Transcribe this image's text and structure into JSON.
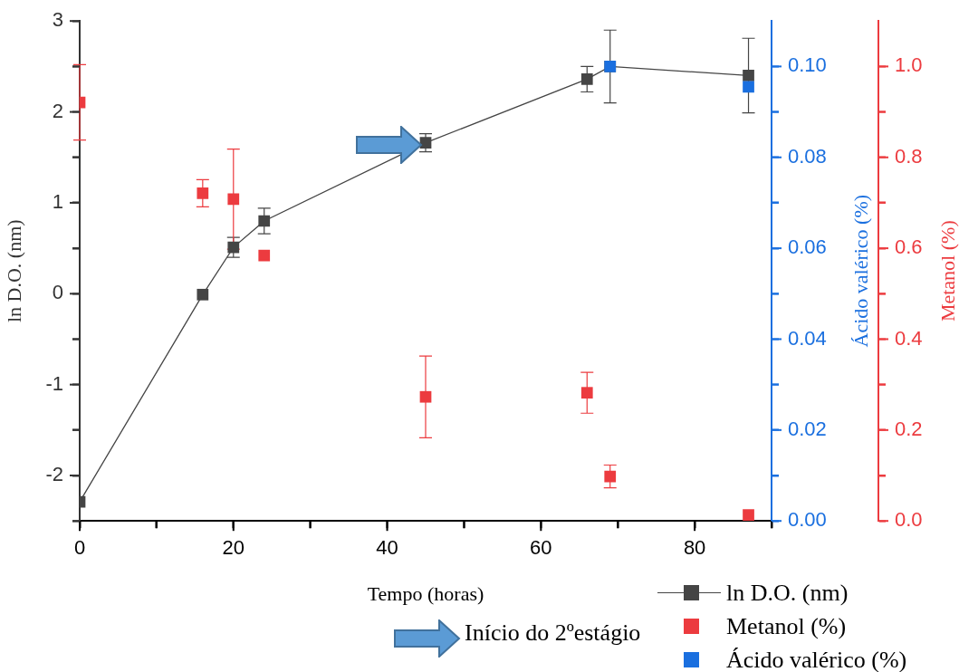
{
  "chart_data": {
    "type": "scatter",
    "xlabel": "Tempo (horas)",
    "ylabel": "ln D.O. (nm)",
    "y2label": "Ácido valérico (%)",
    "y3label": "Metanol (%)",
    "xlim": [
      0,
      90
    ],
    "xticks": [
      0,
      {
        "value": 10,
        "label": null
      },
      20,
      {
        "value": 30,
        "label": null
      },
      40,
      {
        "value": 50,
        "label": null
      },
      60,
      {
        "value": 70,
        "label": null
      },
      80,
      {
        "value": 90,
        "label": null
      }
    ],
    "ylim": [
      -2.5,
      3
    ],
    "yticks": [
      {
        "value": -2.5,
        "label": null
      },
      -2,
      {
        "value": -1.5,
        "label": null
      },
      -1,
      {
        "value": -0.5,
        "label": null
      },
      0,
      {
        "value": 0.5,
        "label": null
      },
      1,
      {
        "value": 1.5,
        "label": null
      },
      2,
      {
        "value": 2.5,
        "label": null
      },
      3
    ],
    "y2lim": [
      0,
      0.11
    ],
    "y2ticks": [
      {
        "value": 0,
        "label": "0.00"
      },
      {
        "value": 0.01,
        "label": null
      },
      {
        "value": 0.02,
        "label": "0.02"
      },
      {
        "value": 0.03,
        "label": null
      },
      {
        "value": 0.04,
        "label": "0.04"
      },
      {
        "value": 0.05,
        "label": null
      },
      {
        "value": 0.06,
        "label": "0.06"
      },
      {
        "value": 0.07,
        "label": null
      },
      {
        "value": 0.08,
        "label": "0.08"
      },
      {
        "value": 0.09,
        "label": null
      },
      {
        "value": 0.1,
        "label": "0.10"
      }
    ],
    "y3lim": [
      0,
      1.1
    ],
    "y3ticks": [
      {
        "value": 0,
        "label": "0.0"
      },
      {
        "value": 0.1,
        "label": null
      },
      {
        "value": 0.2,
        "label": "0.2"
      },
      {
        "value": 0.3,
        "label": null
      },
      {
        "value": 0.4,
        "label": "0.4"
      },
      {
        "value": 0.5,
        "label": null
      },
      {
        "value": 0.6,
        "label": "0.6"
      },
      {
        "value": 0.7,
        "label": null
      },
      {
        "value": 0.8,
        "label": "0.8"
      },
      {
        "value": 0.9,
        "label": null
      },
      {
        "value": 1,
        "label": "1.0"
      }
    ],
    "marker": "square",
    "grid": false,
    "legend": "bottom right",
    "annotations": [
      "Início do 2ºestágio"
    ],
    "series": [
      {
        "name": "ln D.O. (nm)",
        "type": "line",
        "color": "#454545",
        "x": [
          0,
          16,
          20,
          24,
          45,
          66,
          69,
          87
        ],
        "values": [
          -2.29,
          -0.01,
          0.51,
          0.8,
          1.66,
          2.36,
          2.5,
          2.4
        ],
        "errors": [
          null,
          null,
          0.11,
          0.14,
          0.1,
          0.14,
          0.4,
          0.41
        ]
      },
      {
        "name": "Metanol (%)",
        "axis": "y3",
        "color": "#ec3b3f",
        "x": [
          0,
          16,
          20,
          24,
          45,
          66,
          69,
          87
        ],
        "values": [
          0.921,
          0.721,
          0.708,
          0.584,
          0.273,
          0.282,
          0.098,
          0.013
        ],
        "errors": [
          0.083,
          0.03,
          0.11,
          null,
          0.09,
          0.045,
          0.025,
          null
        ]
      },
      {
        "name": "Ácido valérico (%)",
        "axis": "y2",
        "color": "#1a6fdf",
        "x": [
          69,
          87
        ],
        "values": [
          0.1,
          0.0955
        ]
      }
    ]
  }
}
